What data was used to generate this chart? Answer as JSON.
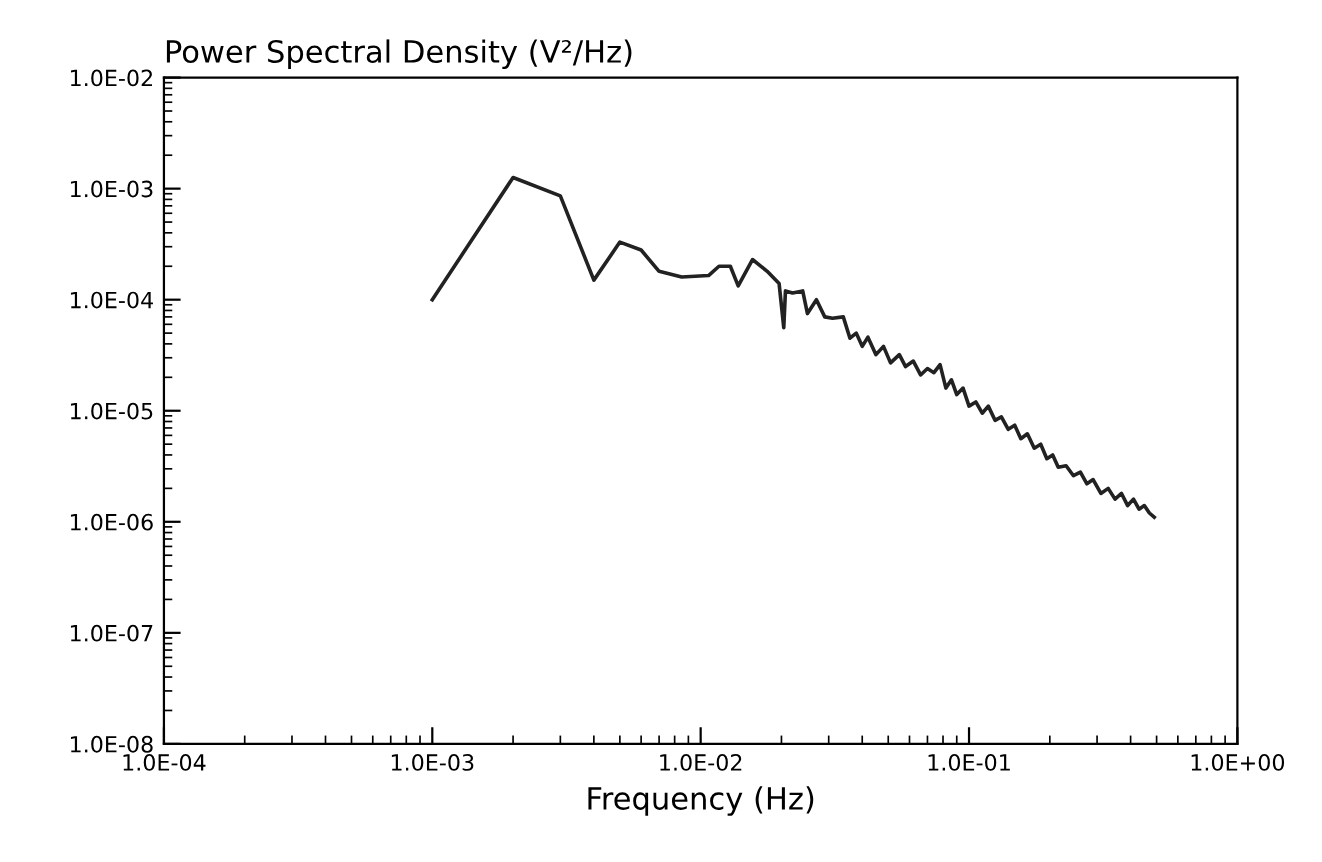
{
  "chart_data": {
    "type": "line",
    "ylabel": "Power Spectral Density (V²/Hz)",
    "xlabel": "Frequency (Hz)",
    "log": "xy",
    "xlim": [
      0.0001,
      1
    ],
    "ylim": [
      1e-08,
      0.01
    ],
    "xticks": [
      {
        "value": 0.0001,
        "label": "1.0E-04"
      },
      {
        "value": 0.001,
        "label": "1.0E-03"
      },
      {
        "value": 0.01,
        "label": "1.0E-02"
      },
      {
        "value": 0.1,
        "label": "1.0E-01"
      },
      {
        "value": 1,
        "label": "1.0E+00"
      }
    ],
    "yticks": [
      {
        "value": 1e-08,
        "label": "1.0E-08"
      },
      {
        "value": 1e-07,
        "label": "1.0E-07"
      },
      {
        "value": 1e-06,
        "label": "1.0E-06"
      },
      {
        "value": 1e-05,
        "label": "1.0E-05"
      },
      {
        "value": 0.0001,
        "label": "1.0E-04"
      },
      {
        "value": 0.001,
        "label": "1.0E-03"
      },
      {
        "value": 0.01,
        "label": "1.0E-02"
      }
    ],
    "grid": false,
    "marker": "none",
    "line_style": "solid",
    "series": [
      {
        "color": "#222222",
        "x": [
          0.001,
          0.002,
          0.003,
          0.004,
          0.005,
          0.006,
          0.007,
          0.0085,
          0.0107,
          0.0117,
          0.0129,
          0.0138,
          0.0156,
          0.0177,
          0.0196,
          0.0204,
          0.0207,
          0.022,
          0.024,
          0.025,
          0.027,
          0.029,
          0.031,
          0.034,
          0.036,
          0.038,
          0.04,
          0.042,
          0.045,
          0.048,
          0.051,
          0.055,
          0.058,
          0.062,
          0.066,
          0.07,
          0.074,
          0.078,
          0.082,
          0.086,
          0.09,
          0.095,
          0.1,
          0.106,
          0.112,
          0.118,
          0.125,
          0.132,
          0.14,
          0.148,
          0.156,
          0.165,
          0.175,
          0.185,
          0.195,
          0.205,
          0.215,
          0.23,
          0.245,
          0.26,
          0.275,
          0.29,
          0.31,
          0.33,
          0.35,
          0.37,
          0.39,
          0.41,
          0.43,
          0.45,
          0.47,
          0.49
        ],
        "values": [
          0.0001,
          0.00126,
          0.00086,
          0.00015,
          0.00033,
          0.00028,
          0.00018,
          0.00016,
          0.000165,
          0.0002,
          0.0002,
          0.000133,
          0.00023,
          0.00018,
          0.00014,
          5.6e-05,
          0.00012,
          0.000115,
          0.00012,
          7.5e-05,
          0.0001,
          7e-05,
          6.8e-05,
          7e-05,
          4.5e-05,
          5e-05,
          3.8e-05,
          4.6e-05,
          3.2e-05,
          3.8e-05,
          2.7e-05,
          3.2e-05,
          2.5e-05,
          2.8e-05,
          2.1e-05,
          2.4e-05,
          2.2e-05,
          2.6e-05,
          1.6e-05,
          1.9e-05,
          1.4e-05,
          1.6e-05,
          1.1e-05,
          1.2e-05,
          9.5e-06,
          1.1e-05,
          8.2e-06,
          8.8e-06,
          6.8e-06,
          7.4e-06,
          5.6e-06,
          6.2e-06,
          4.6e-06,
          5e-06,
          3.7e-06,
          4e-06,
          3.1e-06,
          3.2e-06,
          2.6e-06,
          2.8e-06,
          2.2e-06,
          2.4e-06,
          1.8e-06,
          2e-06,
          1.6e-06,
          1.8e-06,
          1.4e-06,
          1.6e-06,
          1.3e-06,
          1.4e-06,
          1.2e-06,
          1.1e-06
        ]
      }
    ]
  }
}
